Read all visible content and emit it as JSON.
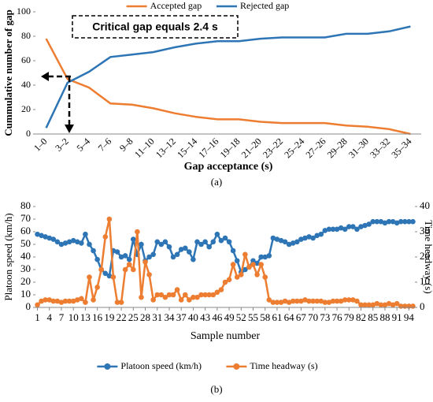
{
  "chart_data": [
    {
      "type": "line",
      "caption": "(a)",
      "ylabel": "Cummulative number of gap",
      "xlabel": "Gap acceptance (s)",
      "annotation": "Critical gap equals  2.4 s",
      "legend": "top",
      "grid": false,
      "categories": [
        "1–0",
        "3–2",
        "5–4",
        "7–6",
        "9–8",
        "11–10",
        "13–12",
        "15–14",
        "17–16",
        "19–18",
        "21–20",
        "23–22",
        "25–24",
        "27–26",
        "29–28",
        "31–30",
        "33–32",
        "35–34"
      ],
      "series": [
        {
          "name": "Accepted gap",
          "color": "#ED7D31",
          "values": [
            78,
            45,
            38,
            25,
            24,
            21,
            17,
            14,
            12,
            12,
            10,
            9,
            9,
            9,
            7,
            6,
            4,
            0
          ]
        },
        {
          "name": "Rejected gap",
          "color": "#2E75B6",
          "values": [
            5,
            42,
            51,
            63,
            65,
            67,
            71,
            74,
            76,
            76,
            78,
            79,
            79,
            79,
            82,
            82,
            84,
            88
          ]
        }
      ],
      "ylim": [
        0,
        100
      ],
      "yticks": [
        0,
        20,
        40,
        60,
        80,
        100
      ]
    },
    {
      "type": "line",
      "caption": "(b)",
      "ylabel": "Platoon speed (km/h)",
      "y2label": "Time headway (s)",
      "xlabel": "Sample number",
      "legend": "bottom",
      "grid": false,
      "markers": true,
      "x": [
        1,
        2,
        3,
        4,
        5,
        6,
        7,
        8,
        9,
        10,
        11,
        12,
        13,
        14,
        15,
        16,
        17,
        18,
        19,
        20,
        21,
        22,
        23,
        24,
        25,
        26,
        27,
        28,
        29,
        30,
        31,
        32,
        33,
        34,
        35,
        36,
        37,
        38,
        39,
        40,
        41,
        42,
        43,
        44,
        45,
        46,
        47,
        48,
        49,
        50,
        51,
        52,
        53,
        54,
        55,
        56,
        57,
        58,
        59,
        60,
        61,
        62,
        63,
        64,
        65,
        66,
        67,
        68,
        69,
        70,
        71,
        72,
        73,
        74,
        75,
        76,
        77,
        78,
        79,
        80,
        81,
        82,
        83,
        84,
        85,
        86,
        87,
        88,
        89,
        90,
        91,
        92,
        93,
        94,
        95
      ],
      "series": [
        {
          "name": "Platoon speed (km/h)",
          "color": "#2E75B6",
          "values": [
            58,
            57,
            56,
            55,
            54,
            52,
            50,
            51,
            52,
            53,
            52,
            51,
            58,
            50,
            45,
            38,
            30,
            27,
            25,
            45,
            44,
            40,
            41,
            38,
            54,
            42,
            50,
            37,
            40,
            42,
            52,
            50,
            52,
            48,
            40,
            42,
            46,
            47,
            44,
            38,
            52,
            50,
            52,
            48,
            52,
            58,
            53,
            55,
            52,
            45,
            37,
            28,
            30,
            32,
            37,
            35,
            40,
            40,
            41,
            55,
            54,
            53,
            52,
            50,
            51,
            52,
            54,
            55,
            56,
            55,
            57,
            58,
            61,
            62,
            62,
            62,
            63,
            62,
            64,
            64,
            62,
            64,
            65,
            66,
            68,
            68,
            68,
            67,
            68,
            68,
            67,
            68,
            68,
            68,
            68
          ]
        },
        {
          "name": "Time headway (s)",
          "color": "#ED7D31",
          "axis": "y2",
          "values": [
            1,
            2.5,
            3,
            3,
            2.5,
            2.5,
            2,
            2.5,
            2.5,
            2.5,
            3,
            3.5,
            2,
            12,
            3,
            8,
            15,
            28,
            35,
            12,
            2,
            2,
            15,
            17,
            15,
            30,
            4,
            18,
            13,
            3,
            5,
            5,
            4,
            5,
            5,
            7,
            3,
            5,
            3,
            4,
            4,
            5,
            5,
            5,
            5,
            6,
            7,
            10,
            11,
            17,
            12,
            13,
            21,
            16,
            17,
            13,
            17,
            12,
            3,
            2,
            2,
            2,
            2.5,
            2,
            2.5,
            2.5,
            2.5,
            3,
            2.5,
            2.5,
            2.5,
            2.5,
            2,
            2,
            2.5,
            2.5,
            2.5,
            3,
            3,
            3,
            2.5,
            1,
            1,
            1,
            1,
            1.5,
            1,
            1,
            1.5,
            1,
            1.5,
            0.5,
            0.5,
            0.5,
            0.5
          ]
        }
      ],
      "xlim": [
        0.5,
        95.5
      ],
      "xticks": [
        1,
        4,
        7,
        10,
        13,
        16,
        19,
        22,
        25,
        28,
        31,
        34,
        37,
        40,
        43,
        46,
        49,
        52,
        55,
        58,
        61,
        64,
        67,
        70,
        73,
        76,
        79,
        82,
        85,
        88,
        91,
        94
      ],
      "ylim": [
        0,
        80
      ],
      "yticks": [
        0,
        10,
        20,
        30,
        40,
        50,
        60,
        70,
        80
      ],
      "y2lim": [
        0,
        40
      ],
      "y2ticks": [
        0,
        10,
        20,
        30,
        40
      ]
    }
  ]
}
